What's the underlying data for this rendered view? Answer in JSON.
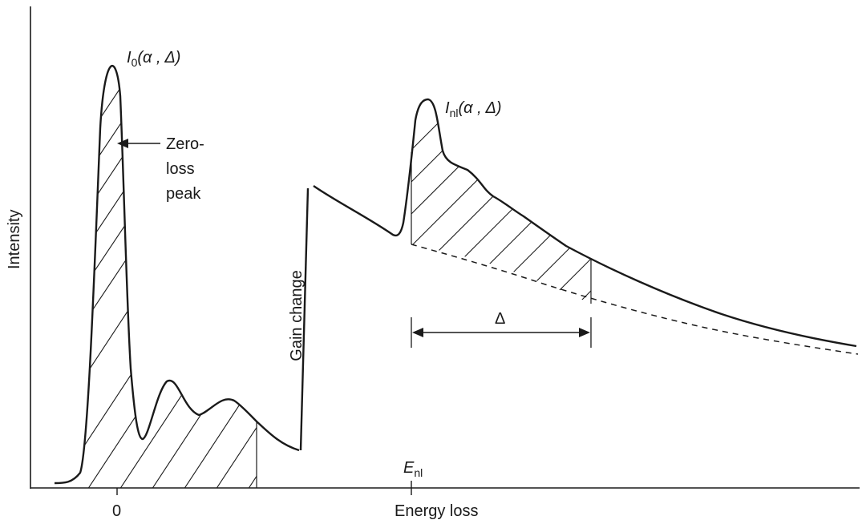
{
  "axes": {
    "x_label": "Energy loss",
    "y_label": "Intensity",
    "x_tick_zero": "0",
    "x_tick_enl_main": "E",
    "x_tick_enl_sub": "nl"
  },
  "annotations": {
    "i0_main": "I",
    "i0_sub": "0",
    "i0_args": "(α , Δ)",
    "inl_main": "I",
    "inl_sub": "nl",
    "inl_args": "(α , Δ)",
    "zero_loss_line1": "Zero-",
    "zero_loss_line2": "loss",
    "zero_loss_line3": "peak",
    "gain_change": "Gain change",
    "delta": "Δ"
  },
  "colors": {
    "ink": "#1a1a1a",
    "background": "#ffffff"
  }
}
